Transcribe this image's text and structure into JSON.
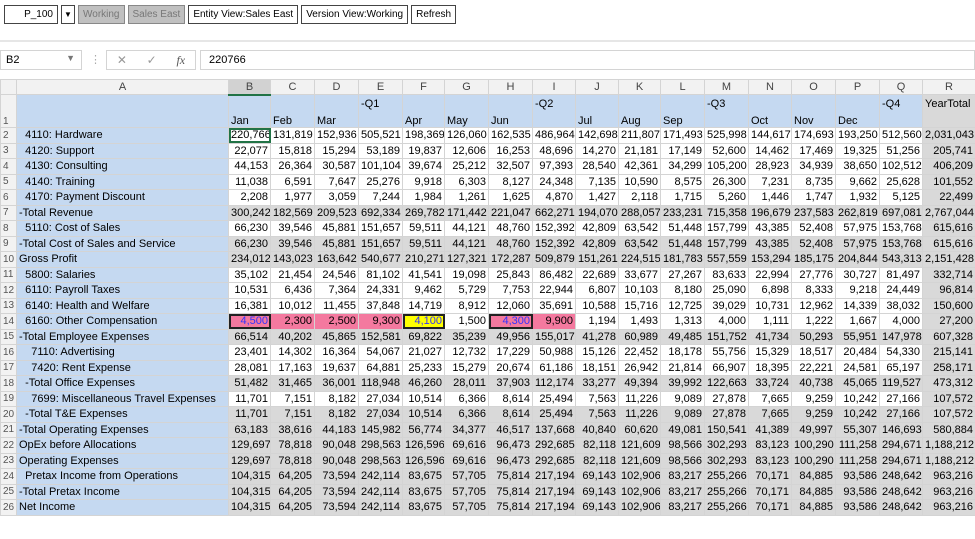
{
  "toolbar": {
    "pov_value": "P_100",
    "dropdown_icon": "caret-down",
    "working_label": "Working",
    "sales_east_label": "Sales East",
    "entity_view": "Entity View:Sales East",
    "version_view": "Version View:Working",
    "refresh": "Refresh"
  },
  "formula_bar": {
    "name_box": "B2",
    "cancel_icon": "✕",
    "enter_icon": "✓",
    "fx_icon": "fx",
    "value": "220766"
  },
  "columns": [
    "A",
    "B",
    "C",
    "D",
    "E",
    "F",
    "G",
    "H",
    "I",
    "J",
    "K",
    "L",
    "M",
    "N",
    "O",
    "P",
    "Q",
    "R"
  ],
  "selected_column": "B",
  "active_cell": "B2",
  "header_row": {
    "top": [
      "",
      "",
      "",
      "-Q1",
      "",
      "",
      "",
      "-Q2",
      "",
      "",
      "",
      "-Q3",
      "",
      "",
      "",
      "-Q4",
      "YearTotal"
    ],
    "bottom": [
      "Jan",
      "Feb",
      "Mar",
      "",
      "Apr",
      "May",
      "Jun",
      "",
      "Jul",
      "Aug",
      "Sep",
      "",
      "Oct",
      "Nov",
      "Dec",
      "",
      ""
    ]
  },
  "colors": {
    "label_bg": "#c5d9f1",
    "total_bg": "#d9d9d9",
    "pink": "#f4799f",
    "yellow": "#ffff00",
    "input_text": "#3333ff"
  },
  "rows": [
    {
      "n": 2,
      "label": "  4110: Hardware",
      "shade": false,
      "values": [
        "220,766",
        "131,819",
        "152,936",
        "505,521",
        "198,369",
        "126,060",
        "162,535",
        "486,964",
        "142,698",
        "211,807",
        "171,493",
        "525,998",
        "144,617",
        "174,693",
        "193,250",
        "512,560",
        "2,031,043"
      ]
    },
    {
      "n": 3,
      "label": "  4120: Support",
      "shade": false,
      "values": [
        "22,077",
        "15,818",
        "15,294",
        "53,189",
        "19,837",
        "12,606",
        "16,253",
        "48,696",
        "14,270",
        "21,181",
        "17,149",
        "52,600",
        "14,462",
        "17,469",
        "19,325",
        "51,256",
        "205,741"
      ]
    },
    {
      "n": 4,
      "label": "  4130: Consulting",
      "shade": false,
      "values": [
        "44,153",
        "26,364",
        "30,587",
        "101,104",
        "39,674",
        "25,212",
        "32,507",
        "97,393",
        "28,540",
        "42,361",
        "34,299",
        "105,200",
        "28,923",
        "34,939",
        "38,650",
        "102,512",
        "406,209"
      ]
    },
    {
      "n": 5,
      "label": "  4140: Training",
      "shade": false,
      "values": [
        "11,038",
        "6,591",
        "7,647",
        "25,276",
        "9,918",
        "6,303",
        "8,127",
        "24,348",
        "7,135",
        "10,590",
        "8,575",
        "26,300",
        "7,231",
        "8,735",
        "9,662",
        "25,628",
        "101,552"
      ]
    },
    {
      "n": 6,
      "label": "  4170: Payment Discount",
      "shade": false,
      "values": [
        "2,208",
        "1,977",
        "3,059",
        "7,244",
        "1,984",
        "1,261",
        "1,625",
        "4,870",
        "1,427",
        "2,118",
        "1,715",
        "5,260",
        "1,446",
        "1,747",
        "1,932",
        "5,125",
        "22,499"
      ]
    },
    {
      "n": 7,
      "label": "-Total Revenue",
      "shade": true,
      "values": [
        "300,242",
        "182,569",
        "209,523",
        "692,334",
        "269,782",
        "171,442",
        "221,047",
        "662,271",
        "194,070",
        "288,057",
        "233,231",
        "715,358",
        "196,679",
        "237,583",
        "262,819",
        "697,081",
        "2,767,044"
      ]
    },
    {
      "n": 8,
      "label": "  5110: Cost of Sales",
      "shade": false,
      "values": [
        "66,230",
        "39,546",
        "45,881",
        "151,657",
        "59,511",
        "44,121",
        "48,760",
        "152,392",
        "42,809",
        "63,542",
        "51,448",
        "157,799",
        "43,385",
        "52,408",
        "57,975",
        "153,768",
        "615,616"
      ]
    },
    {
      "n": 9,
      "label": "-Total Cost of Sales and Service",
      "shade": true,
      "values": [
        "66,230",
        "39,546",
        "45,881",
        "151,657",
        "59,511",
        "44,121",
        "48,760",
        "152,392",
        "42,809",
        "63,542",
        "51,448",
        "157,799",
        "43,385",
        "52,408",
        "57,975",
        "153,768",
        "615,616"
      ]
    },
    {
      "n": 10,
      "label": "Gross Profit",
      "shade": true,
      "values": [
        "234,012",
        "143,023",
        "163,642",
        "540,677",
        "210,271",
        "127,321",
        "172,287",
        "509,879",
        "151,261",
        "224,515",
        "181,783",
        "557,559",
        "153,294",
        "185,175",
        "204,844",
        "543,313",
        "2,151,428"
      ]
    },
    {
      "n": 11,
      "label": "  5800: Salaries",
      "shade": false,
      "values": [
        "35,102",
        "21,454",
        "24,546",
        "81,102",
        "41,541",
        "19,098",
        "25,843",
        "86,482",
        "22,689",
        "33,677",
        "27,267",
        "83,633",
        "22,994",
        "27,776",
        "30,727",
        "81,497",
        "332,714"
      ]
    },
    {
      "n": 12,
      "label": "  6110: Payroll Taxes",
      "shade": false,
      "values": [
        "10,531",
        "6,436",
        "7,364",
        "24,331",
        "9,462",
        "5,729",
        "7,753",
        "22,944",
        "6,807",
        "10,103",
        "8,180",
        "25,090",
        "6,898",
        "8,333",
        "9,218",
        "24,449",
        "96,814"
      ]
    },
    {
      "n": 13,
      "label": "  6140: Health and Welfare",
      "shade": false,
      "values": [
        "16,381",
        "10,012",
        "11,455",
        "37,848",
        "14,719",
        "8,912",
        "12,060",
        "35,691",
        "10,588",
        "15,716",
        "12,725",
        "39,029",
        "10,731",
        "12,962",
        "14,339",
        "38,032",
        "150,600"
      ]
    },
    {
      "n": 14,
      "label": "  6160: Other Compensation",
      "shade": false,
      "values": [
        "4,500",
        "2,300",
        "2,500",
        "9,300",
        "4,100",
        "1,500",
        "4,300",
        "9,900",
        "1,194",
        "1,493",
        "1,313",
        "4,000",
        "1,111",
        "1,222",
        "1,667",
        "4,000",
        "27,200"
      ],
      "highlights": [
        {
          "col": "B",
          "fill": "pink",
          "input": true
        },
        {
          "col": "C",
          "fill": "pink"
        },
        {
          "col": "D",
          "fill": "pink"
        },
        {
          "col": "E",
          "fill": "pink"
        },
        {
          "col": "F",
          "fill": "yellow",
          "input": true
        },
        {
          "col": "H",
          "fill": "pink",
          "input": true
        },
        {
          "col": "I",
          "fill": "pink"
        }
      ]
    },
    {
      "n": 15,
      "label": "-Total Employee Expenses",
      "shade": true,
      "values": [
        "66,514",
        "40,202",
        "45,865",
        "152,581",
        "69,822",
        "35,239",
        "49,956",
        "155,017",
        "41,278",
        "60,989",
        "49,485",
        "151,752",
        "41,734",
        "50,293",
        "55,951",
        "147,978",
        "607,328"
      ]
    },
    {
      "n": 16,
      "label": "    7110: Advertising",
      "shade": false,
      "values": [
        "23,401",
        "14,302",
        "16,364",
        "54,067",
        "21,027",
        "12,732",
        "17,229",
        "50,988",
        "15,126",
        "22,452",
        "18,178",
        "55,756",
        "15,329",
        "18,517",
        "20,484",
        "54,330",
        "215,141"
      ]
    },
    {
      "n": 17,
      "label": "    7420: Rent Expense",
      "shade": false,
      "values": [
        "28,081",
        "17,163",
        "19,637",
        "64,881",
        "25,233",
        "15,279",
        "20,674",
        "61,186",
        "18,151",
        "26,942",
        "21,814",
        "66,907",
        "18,395",
        "22,221",
        "24,581",
        "65,197",
        "258,171"
      ]
    },
    {
      "n": 18,
      "label": "  -Total Office Expenses",
      "shade": true,
      "values": [
        "51,482",
        "31,465",
        "36,001",
        "118,948",
        "46,260",
        "28,011",
        "37,903",
        "112,174",
        "33,277",
        "49,394",
        "39,992",
        "122,663",
        "33,724",
        "40,738",
        "45,065",
        "119,527",
        "473,312"
      ]
    },
    {
      "n": 19,
      "label": "    7699: Miscellaneous Travel Expenses",
      "shade": false,
      "values": [
        "11,701",
        "7,151",
        "8,182",
        "27,034",
        "10,514",
        "6,366",
        "8,614",
        "25,494",
        "7,563",
        "11,226",
        "9,089",
        "27,878",
        "7,665",
        "9,259",
        "10,242",
        "27,166",
        "107,572"
      ]
    },
    {
      "n": 20,
      "label": "  -Total T&E Expenses",
      "shade": true,
      "values": [
        "11,701",
        "7,151",
        "8,182",
        "27,034",
        "10,514",
        "6,366",
        "8,614",
        "25,494",
        "7,563",
        "11,226",
        "9,089",
        "27,878",
        "7,665",
        "9,259",
        "10,242",
        "27,166",
        "107,572"
      ]
    },
    {
      "n": 21,
      "label": "-Total Operating Expenses",
      "shade": true,
      "values": [
        "63,183",
        "38,616",
        "44,183",
        "145,982",
        "56,774",
        "34,377",
        "46,517",
        "137,668",
        "40,840",
        "60,620",
        "49,081",
        "150,541",
        "41,389",
        "49,997",
        "55,307",
        "146,693",
        "580,884"
      ]
    },
    {
      "n": 22,
      "label": "OpEx before Allocations",
      "shade": true,
      "values": [
        "129,697",
        "78,818",
        "90,048",
        "298,563",
        "126,596",
        "69,616",
        "96,473",
        "292,685",
        "82,118",
        "121,609",
        "98,566",
        "302,293",
        "83,123",
        "100,290",
        "111,258",
        "294,671",
        "1,188,212"
      ]
    },
    {
      "n": 23,
      "label": "Operating Expenses",
      "shade": true,
      "values": [
        "129,697",
        "78,818",
        "90,048",
        "298,563",
        "126,596",
        "69,616",
        "96,473",
        "292,685",
        "82,118",
        "121,609",
        "98,566",
        "302,293",
        "83,123",
        "100,290",
        "111,258",
        "294,671",
        "1,188,212"
      ]
    },
    {
      "n": 24,
      "label": "  Pretax Income from Operations",
      "shade": true,
      "values": [
        "104,315",
        "64,205",
        "73,594",
        "242,114",
        "83,675",
        "57,705",
        "75,814",
        "217,194",
        "69,143",
        "102,906",
        "83,217",
        "255,266",
        "70,171",
        "84,885",
        "93,586",
        "248,642",
        "963,216"
      ]
    },
    {
      "n": 25,
      "label": "-Total Pretax Income",
      "shade": true,
      "values": [
        "104,315",
        "64,205",
        "73,594",
        "242,114",
        "83,675",
        "57,705",
        "75,814",
        "217,194",
        "69,143",
        "102,906",
        "83,217",
        "255,266",
        "70,171",
        "84,885",
        "93,586",
        "248,642",
        "963,216"
      ]
    },
    {
      "n": 26,
      "label": "Net Income",
      "shade": true,
      "values": [
        "104,315",
        "64,205",
        "73,594",
        "242,114",
        "83,675",
        "57,705",
        "75,814",
        "217,194",
        "69,143",
        "102,906",
        "83,217",
        "255,266",
        "70,171",
        "84,885",
        "93,586",
        "248,642",
        "963,216"
      ]
    }
  ]
}
